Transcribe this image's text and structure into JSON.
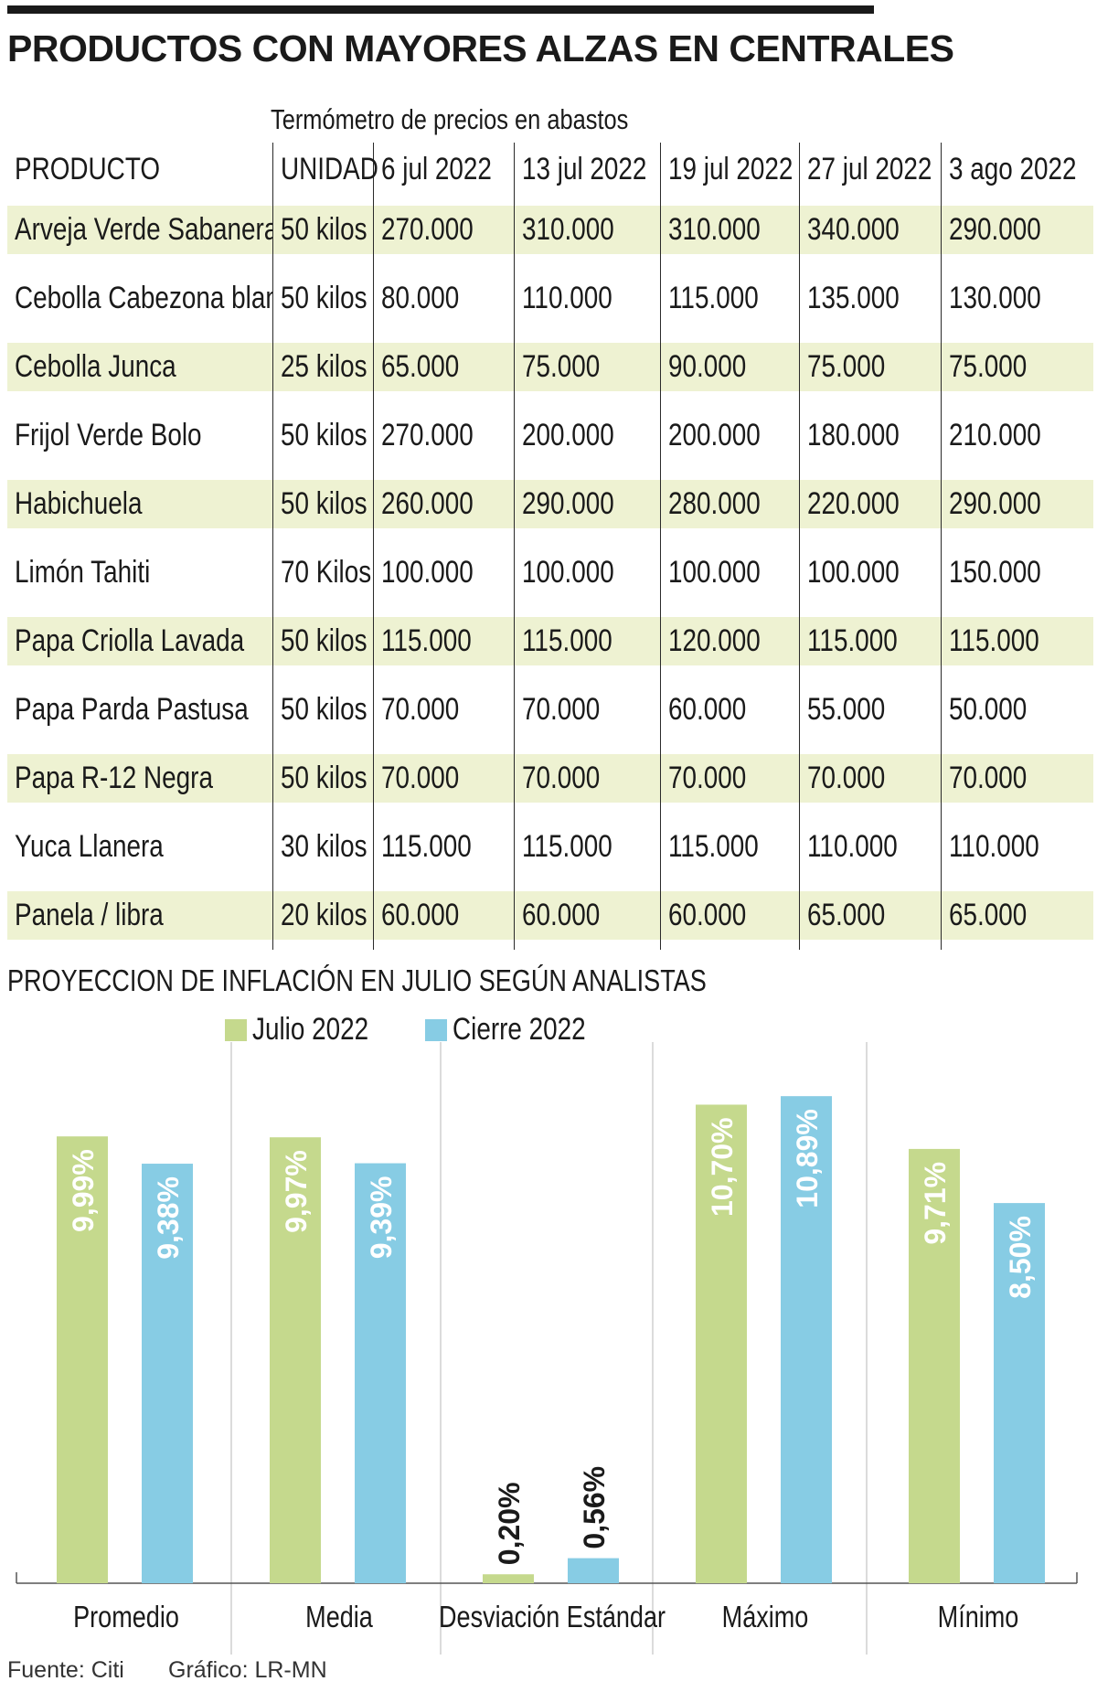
{
  "title": "PRODUCTOS CON MAYORES ALZAS EN CENTRALES",
  "subtitle": "Termómetro de precios en abastos",
  "table": {
    "headers": [
      "PRODUCTO",
      "UNIDAD",
      "6 jul 2022",
      "13 jul 2022",
      "19 jul 2022",
      "27 jul 2022",
      "3 ago 2022"
    ],
    "rows": [
      [
        "Arveja Verde Sabanera",
        "50 kilos",
        "270.000",
        "310.000",
        "310.000",
        "340.000",
        "290.000"
      ],
      [
        "Cebolla Cabezona blanca",
        "50 kilos",
        "80.000",
        "110.000",
        "115.000",
        "135.000",
        "130.000"
      ],
      [
        "Cebolla Junca",
        "25 kilos",
        "65.000",
        "75.000",
        "90.000",
        "75.000",
        "75.000"
      ],
      [
        "Frijol Verde Bolo",
        "50 kilos",
        "270.000",
        "200.000",
        "200.000",
        "180.000",
        "210.000"
      ],
      [
        "Habichuela",
        "50 kilos",
        "260.000",
        "290.000",
        "280.000",
        "220.000",
        "290.000"
      ],
      [
        "Limón Tahiti",
        "70 Kilos",
        "100.000",
        "100.000",
        "100.000",
        "100.000",
        "150.000"
      ],
      [
        "Papa Criolla Lavada",
        "50 kilos",
        "115.000",
        "115.000",
        "120.000",
        "115.000",
        "115.000"
      ],
      [
        "Papa Parda Pastusa",
        "50 kilos",
        "70.000",
        "70.000",
        "60.000",
        "55.000",
        "50.000"
      ],
      [
        "Papa R-12 Negra",
        "50 kilos",
        "70.000",
        "70.000",
        "70.000",
        "70.000",
        "70.000"
      ],
      [
        "Yuca Llanera",
        "30 kilos",
        "115.000",
        "115.000",
        "115.000",
        "110.000",
        "110.000"
      ],
      [
        "Panela / libra",
        "20 kilos",
        "60.000",
        "60.000",
        "60.000",
        "65.000",
        "65.000"
      ]
    ]
  },
  "chart_data": {
    "type": "bar",
    "title": "PROYECCION DE INFLACIÓN EN JULIO SEGÚN ANALISTAS",
    "categories": [
      "Promedio",
      "Media",
      "Desviación Estándar",
      "Máximo",
      "Mínimo"
    ],
    "series": [
      {
        "name": "Julio 2022",
        "color": "#c5d98d",
        "values": [
          9.99,
          9.97,
          0.2,
          10.7,
          9.71
        ],
        "labels": [
          "9,99%",
          "9,97%",
          "0,20%",
          "10,70%",
          "9,71%"
        ]
      },
      {
        "name": "Cierre 2022",
        "color": "#87cce4",
        "values": [
          9.38,
          9.39,
          0.56,
          10.89,
          8.5
        ],
        "labels": [
          "9,38%",
          "9,39%",
          "0,56%",
          "10,89%",
          "8,50%"
        ]
      }
    ],
    "xlabel": "",
    "ylabel": "",
    "ylim": [
      0,
      11.2
    ],
    "grid": false,
    "legend": "top"
  },
  "footer": {
    "source": "Fuente: Citi",
    "credit": "Gráfico: LR-MN"
  }
}
